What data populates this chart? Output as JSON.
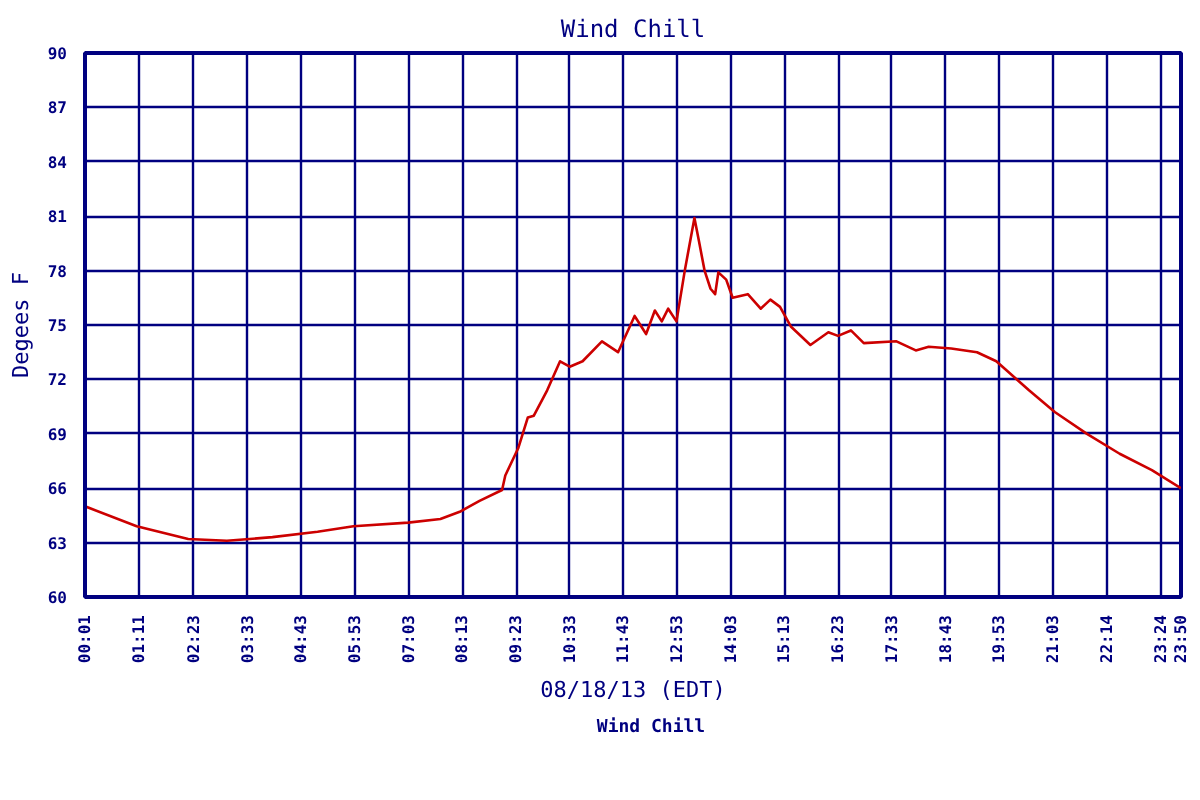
{
  "chart_data": {
    "type": "line",
    "title": "Wind Chill",
    "xlabel": "08/18/13 (EDT)",
    "ylabel": "Degees F",
    "series": [
      {
        "name": "Wind Chill",
        "color": "#cc0000",
        "x": [
          0.017,
          1.14,
          2.26,
          3.1,
          4.09,
          5.07,
          5.85,
          7.04,
          7.74,
          8.16,
          8.59,
          9.08,
          9.15,
          9.43,
          9.64,
          9.77,
          10.06,
          10.34,
          10.55,
          10.83,
          11.25,
          11.6,
          11.96,
          12.21,
          12.4,
          12.55,
          12.69,
          12.87,
          13.05,
          13.26,
          13.36,
          13.48,
          13.61,
          13.71,
          13.78,
          13.95,
          14.09,
          14.42,
          14.7,
          14.91,
          15.12,
          15.36,
          15.78,
          16.17,
          16.38,
          16.66,
          16.94,
          17.65,
          18.07,
          18.35,
          18.84,
          19.4,
          19.82,
          20.53,
          21.09,
          21.79,
          22.5,
          23.2,
          23.83
        ],
        "values": [
          65.0,
          63.9,
          63.2,
          63.1,
          63.3,
          63.6,
          63.9,
          64.1,
          64.3,
          64.7,
          65.3,
          65.9,
          66.7,
          68.2,
          69.9,
          70.0,
          71.4,
          73.0,
          72.7,
          73.0,
          74.1,
          73.5,
          75.5,
          74.5,
          75.8,
          75.2,
          75.9,
          75.2,
          78.0,
          80.9,
          79.6,
          78.0,
          77.0,
          76.7,
          77.9,
          77.5,
          76.5,
          76.7,
          75.9,
          76.4,
          76.0,
          74.9,
          73.9,
          74.6,
          74.4,
          74.7,
          74.0,
          74.1,
          73.6,
          73.8,
          73.7,
          73.5,
          73.0,
          71.4,
          70.2,
          69.0,
          67.9,
          67.0,
          66.0
        ]
      }
    ],
    "xlim": [
      0.017,
      23.833
    ],
    "xticks": [
      {
        "value": 0.017,
        "label": "00:01"
      },
      {
        "value": 1.183,
        "label": "01:11"
      },
      {
        "value": 2.383,
        "label": "02:23"
      },
      {
        "value": 3.55,
        "label": "03:33"
      },
      {
        "value": 4.717,
        "label": "04:43"
      },
      {
        "value": 5.883,
        "label": "05:53"
      },
      {
        "value": 7.05,
        "label": "07:03"
      },
      {
        "value": 8.217,
        "label": "08:13"
      },
      {
        "value": 9.383,
        "label": "09:23"
      },
      {
        "value": 10.55,
        "label": "10:33"
      },
      {
        "value": 11.717,
        "label": "11:43"
      },
      {
        "value": 12.883,
        "label": "12:53"
      },
      {
        "value": 14.05,
        "label": "14:03"
      },
      {
        "value": 15.217,
        "label": "15:13"
      },
      {
        "value": 16.383,
        "label": "16:23"
      },
      {
        "value": 17.55,
        "label": "17:33"
      },
      {
        "value": 18.717,
        "label": "18:43"
      },
      {
        "value": 19.883,
        "label": "19:53"
      },
      {
        "value": 21.05,
        "label": "21:03"
      },
      {
        "value": 22.233,
        "label": "22:14"
      },
      {
        "value": 23.4,
        "label": "23:24"
      },
      {
        "value": 23.833,
        "label": "23:50"
      }
    ],
    "ylim": [
      60,
      90
    ],
    "yticks": [
      60,
      63,
      66,
      69,
      72,
      75,
      78,
      81,
      84,
      87,
      90
    ],
    "grid": true,
    "legend": "bottom",
    "marker": "none",
    "line_style": "solid"
  }
}
